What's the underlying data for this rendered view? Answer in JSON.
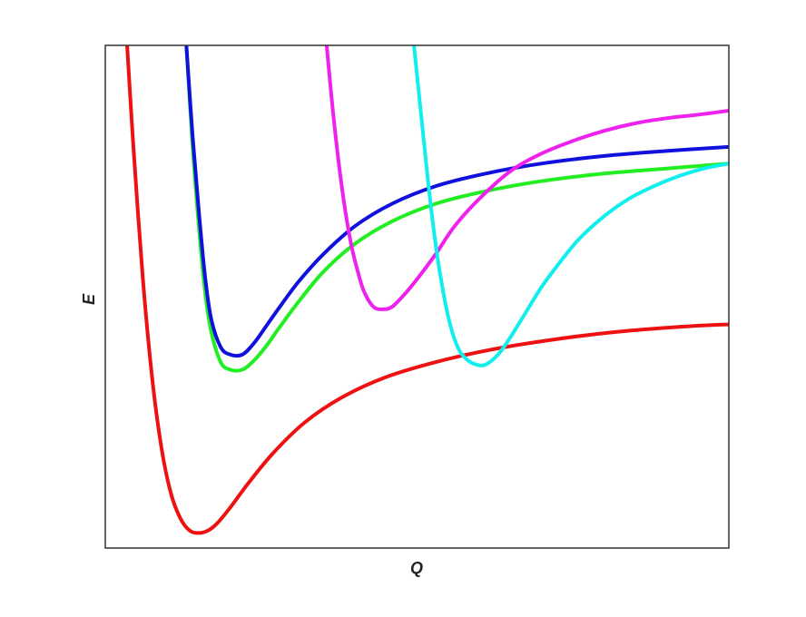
{
  "chart_data": {
    "type": "line",
    "title": "",
    "xlabel": "Q",
    "ylabel": "E",
    "xlim": [
      0,
      10
    ],
    "ylim": [
      0,
      10
    ],
    "grid": false,
    "legend": "none",
    "x_ticks": [],
    "y_ticks": [],
    "series": [
      {
        "color": "#ee1111",
        "x": [
          0.35,
          0.45,
          0.6,
          0.75,
          0.9,
          1.05,
          1.2,
          1.35,
          1.5,
          1.65,
          1.8,
          2.0,
          2.3,
          2.7,
          3.2,
          3.8,
          4.5,
          5.3,
          6.2,
          7.2,
          8.2,
          9.2,
          10.0
        ],
        "y": [
          10.0,
          8.0,
          5.4,
          3.4,
          2.0,
          1.1,
          0.6,
          0.35,
          0.3,
          0.35,
          0.5,
          0.8,
          1.3,
          1.9,
          2.5,
          3.0,
          3.4,
          3.7,
          3.95,
          4.15,
          4.3,
          4.4,
          4.45
        ]
      },
      {
        "color": "#22ee22",
        "x": [
          1.3,
          1.4,
          1.5,
          1.6,
          1.7,
          1.85,
          2.0,
          2.2,
          2.4,
          2.6,
          2.8,
          3.1,
          3.5,
          4.0,
          4.6,
          5.3,
          6.1,
          7.0,
          8.0,
          9.0,
          10.0
        ],
        "y": [
          10.0,
          8.0,
          6.4,
          5.1,
          4.3,
          3.7,
          3.55,
          3.55,
          3.75,
          4.05,
          4.4,
          4.9,
          5.5,
          6.05,
          6.5,
          6.85,
          7.1,
          7.3,
          7.45,
          7.55,
          7.65
        ]
      },
      {
        "color": "#1111dd",
        "x": [
          1.3,
          1.4,
          1.5,
          1.6,
          1.7,
          1.85,
          2.0,
          2.2,
          2.4,
          2.6,
          2.8,
          3.1,
          3.5,
          4.0,
          4.6,
          5.3,
          6.1,
          7.0,
          8.0,
          9.0,
          10.0
        ],
        "y": [
          10.0,
          8.2,
          6.7,
          5.4,
          4.55,
          4.0,
          3.85,
          3.85,
          4.1,
          4.45,
          4.8,
          5.3,
          5.85,
          6.4,
          6.85,
          7.2,
          7.45,
          7.65,
          7.8,
          7.9,
          7.98
        ]
      },
      {
        "color": "#ee22ee",
        "x": [
          3.55,
          3.65,
          3.75,
          3.85,
          3.95,
          4.05,
          4.15,
          4.3,
          4.45,
          4.6,
          4.8,
          5.0,
          5.3,
          5.6,
          6.0,
          6.5,
          7.0,
          7.5,
          8.0,
          8.5,
          9.0,
          9.5,
          10.0
        ],
        "y": [
          10.0,
          8.7,
          7.6,
          6.7,
          6.0,
          5.5,
          5.1,
          4.8,
          4.75,
          4.8,
          5.05,
          5.35,
          5.85,
          6.4,
          6.95,
          7.5,
          7.85,
          8.1,
          8.3,
          8.45,
          8.55,
          8.62,
          8.7
        ]
      },
      {
        "color": "#11eeee",
        "x": [
          4.95,
          5.05,
          5.15,
          5.25,
          5.35,
          5.5,
          5.65,
          5.8,
          5.95,
          6.1,
          6.3,
          6.5,
          6.75,
          7.0,
          7.3,
          7.6,
          8.0,
          8.4,
          8.8,
          9.2,
          9.6,
          10.0
        ],
        "y": [
          10.0,
          8.8,
          7.6,
          6.5,
          5.6,
          4.6,
          4.0,
          3.75,
          3.65,
          3.65,
          3.85,
          4.2,
          4.7,
          5.2,
          5.7,
          6.15,
          6.6,
          6.95,
          7.2,
          7.4,
          7.55,
          7.65
        ]
      }
    ]
  }
}
